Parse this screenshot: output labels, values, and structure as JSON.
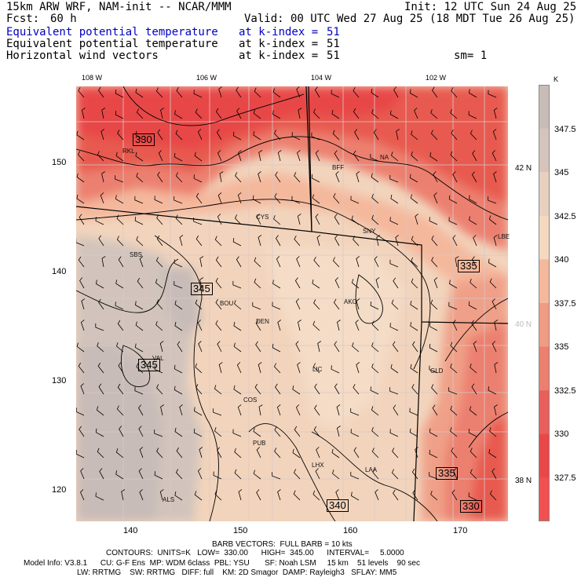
{
  "header": {
    "model": "15km ARW WRF, NAM-init -- NCAR/MMM",
    "init": "Init: 12 UTC Sun 24 Aug 25",
    "fcst_label": "Fcst:",
    "fcst_value": "60 h",
    "valid": "Valid: 00 UTC Wed 27 Aug 25 (18 MDT Tue 26 Aug 25)",
    "lines": [
      {
        "field": "Equivalent potential temperature",
        "level": "at k-index =",
        "k": "51",
        "extra": ""
      },
      {
        "field": "Equivalent potential temperature",
        "level": "at k-index =",
        "k": "51",
        "extra": ""
      },
      {
        "field": "Horizontal wind vectors",
        "level": "at k-index =",
        "k": "51",
        "extra": "sm= 1"
      }
    ]
  },
  "axes": {
    "top_lon": [
      "108 W",
      "106 W",
      "104 W",
      "102 W"
    ],
    "left_y": [
      "150",
      "140",
      "130",
      "120"
    ],
    "bottom_x": [
      "140",
      "150",
      "160",
      "170"
    ],
    "right_lat": [
      "42 N",
      "40 N",
      "38 N"
    ]
  },
  "colorbar": {
    "unit": "K",
    "ticks": [
      "347.5",
      "345",
      "342.5",
      "340",
      "337.5",
      "335",
      "332.5",
      "330",
      "327.5"
    ],
    "colors": [
      "#c8bcb8",
      "#d4c4bc",
      "#e8d0c0",
      "#f4d8c0",
      "#f4b89c",
      "#f09c84",
      "#ec8070",
      "#e8605c",
      "#e84848",
      "#f05050"
    ]
  },
  "contour_labels": [
    "330",
    "345",
    "345",
    "335",
    "335",
    "340",
    "330"
  ],
  "cities": [
    "RKL",
    "BFF",
    "NA",
    "CYS",
    "SNY",
    "SBS",
    "LBE",
    "BOU",
    "AKO",
    "DEN",
    "LIC",
    "GLD",
    "COS",
    "PUB",
    "LHX",
    "LAA",
    "ALS",
    "VAL"
  ],
  "footer": {
    "barb": "BARB VECTORS:  FULL BARB = 10 kts",
    "contours": "CONTOURS:  UNITS=K   LOW=  330.00      HIGH=  345.00      INTERVAL=     5.0000",
    "model_info": "Model Info: V3.8.1      CU: G-F Ens  MP: WDM 6class  PBL: YSU       SF: Noah LSM     15 km    51 levels    90 sec",
    "model_info2": "LW: RRTMG    SW: RRTMG   DIFF: full    KM: 2D Smagor  DAMP: Rayleigh3   SFLAY: MM5"
  }
}
